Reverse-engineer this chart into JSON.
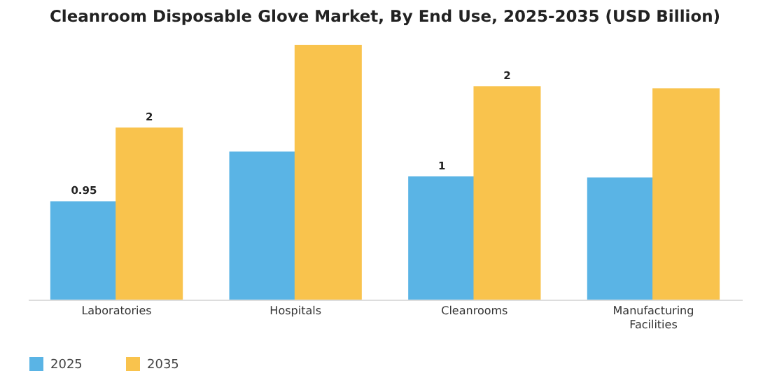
{
  "chart_data": {
    "type": "bar",
    "title": "Cleanroom Disposable Glove Market, By End Use, 2025-2035 (USD Billion)",
    "categories": [
      "Laboratories",
      "Hospitals",
      "Cleanrooms",
      "Manufacturing Facilities"
    ],
    "legend": "bottom",
    "series": [
      {
        "name": "2025",
        "color": "#5ab4e5",
        "values": [
          0.95,
          1.43,
          1.19,
          1.18
        ],
        "value_labels": [
          "0.95",
          null,
          "1",
          null
        ]
      },
      {
        "name": "2035",
        "color": "#f9c34d",
        "values": [
          1.66,
          2.46,
          2.06,
          2.04
        ],
        "value_labels": [
          "2",
          null,
          "2",
          null
        ]
      }
    ]
  }
}
